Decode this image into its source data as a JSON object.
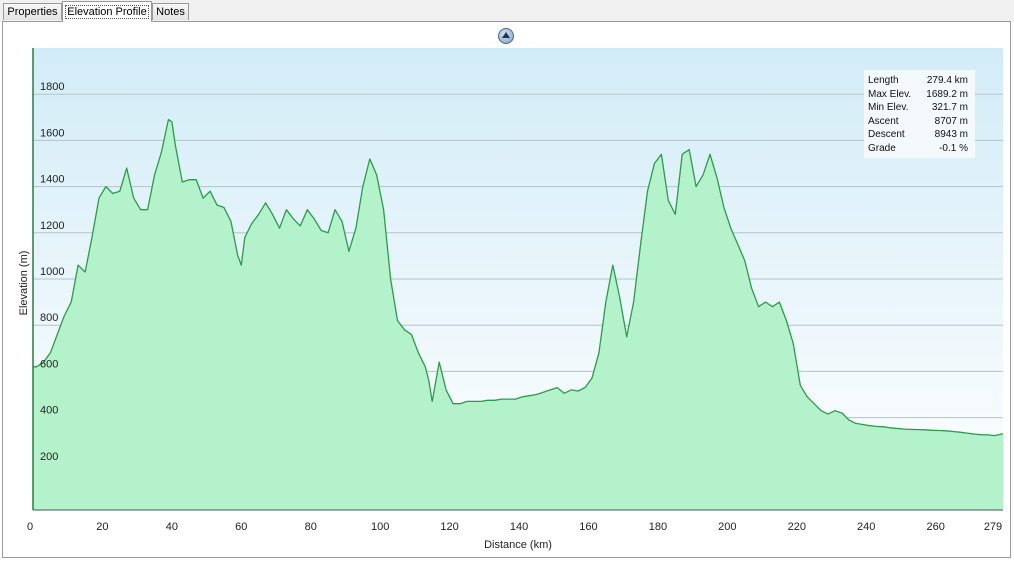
{
  "tabs": [
    {
      "label": "Properties",
      "active": false
    },
    {
      "label": "Elevation Profile",
      "active": true
    },
    {
      "label": "Notes",
      "active": false
    }
  ],
  "colors": {
    "fill": "#b4f2cb",
    "line": "#2d9a4c",
    "bg_top": "#d2ecf7",
    "bg_bottom": "#ffffff",
    "grid": "#b5c3cb"
  },
  "stats": [
    {
      "label": "Length",
      "value": "279.4 km"
    },
    {
      "label": "Max Elev.",
      "value": "1689.2 m"
    },
    {
      "label": "Min Elev.",
      "value": "321.7 m"
    },
    {
      "label": "Ascent",
      "value": "8707 m"
    },
    {
      "label": "Descent",
      "value": "8943 m"
    },
    {
      "label": "Grade",
      "value": "-0.1 %"
    }
  ],
  "chart_data": {
    "type": "area",
    "title": "",
    "xlabel": "Distance  (km)",
    "ylabel": "Elevation (m)",
    "xlim": [
      0,
      279.4
    ],
    "ylim": [
      0,
      2000
    ],
    "x_ticks": [
      "0",
      "20",
      "40",
      "60",
      "80",
      "100",
      "120",
      "140",
      "160",
      "180",
      "200",
      "220",
      "240",
      "260",
      "279"
    ],
    "y_ticks": [
      "200",
      "400",
      "600",
      "800",
      "1000",
      "1200",
      "1400",
      "1600",
      "1800"
    ],
    "grid": true,
    "x": [
      0,
      1,
      3,
      5,
      7,
      9,
      11,
      13,
      15,
      17,
      19,
      21,
      23,
      25,
      27,
      29,
      31,
      33,
      35,
      37,
      39,
      40,
      41,
      43,
      45,
      47,
      49,
      51,
      53,
      55,
      57,
      59,
      60,
      61,
      63,
      65,
      67,
      69,
      71,
      73,
      75,
      77,
      79,
      81,
      83,
      85,
      87,
      89,
      91,
      93,
      95,
      97,
      99,
      101,
      103,
      105,
      107,
      109,
      111,
      113,
      114,
      115,
      117,
      119,
      121,
      123,
      125,
      127,
      129,
      131,
      133,
      135,
      137,
      139,
      141,
      143,
      145,
      147,
      149,
      151,
      153,
      155,
      157,
      159,
      161,
      163,
      165,
      167,
      169,
      171,
      173,
      175,
      177,
      179,
      181,
      183,
      185,
      187,
      189,
      191,
      193,
      195,
      197,
      199,
      201,
      203,
      205,
      207,
      209,
      211,
      213,
      215,
      217,
      219,
      221,
      223,
      225,
      227,
      229,
      231,
      233,
      235,
      237,
      239,
      241,
      243,
      245,
      247,
      249,
      251,
      253,
      255,
      257,
      259,
      261,
      263,
      265,
      267,
      269,
      271,
      273,
      275,
      277,
      279.4
    ],
    "y": [
      620,
      620,
      640,
      680,
      760,
      840,
      900,
      1060,
      1030,
      1180,
      1350,
      1400,
      1370,
      1380,
      1480,
      1350,
      1300,
      1300,
      1450,
      1550,
      1690,
      1680,
      1580,
      1420,
      1430,
      1430,
      1350,
      1380,
      1320,
      1310,
      1250,
      1100,
      1060,
      1180,
      1240,
      1280,
      1330,
      1280,
      1220,
      1300,
      1260,
      1230,
      1300,
      1260,
      1210,
      1200,
      1300,
      1250,
      1120,
      1220,
      1400,
      1520,
      1450,
      1300,
      1000,
      820,
      780,
      760,
      680,
      620,
      560,
      470,
      640,
      520,
      460,
      460,
      470,
      470,
      470,
      475,
      475,
      480,
      480,
      480,
      490,
      495,
      500,
      510,
      520,
      530,
      505,
      520,
      515,
      530,
      570,
      680,
      900,
      1060,
      920,
      750,
      900,
      1150,
      1380,
      1500,
      1540,
      1340,
      1280,
      1540,
      1560,
      1400,
      1450,
      1540,
      1440,
      1310,
      1220,
      1150,
      1080,
      960,
      880,
      900,
      880,
      900,
      820,
      720,
      540,
      490,
      460,
      430,
      415,
      430,
      420,
      390,
      375,
      370,
      365,
      362,
      360,
      356,
      353,
      350,
      349,
      348,
      347,
      345,
      344,
      343,
      340,
      337,
      333,
      329,
      326,
      325,
      322,
      330
    ]
  }
}
